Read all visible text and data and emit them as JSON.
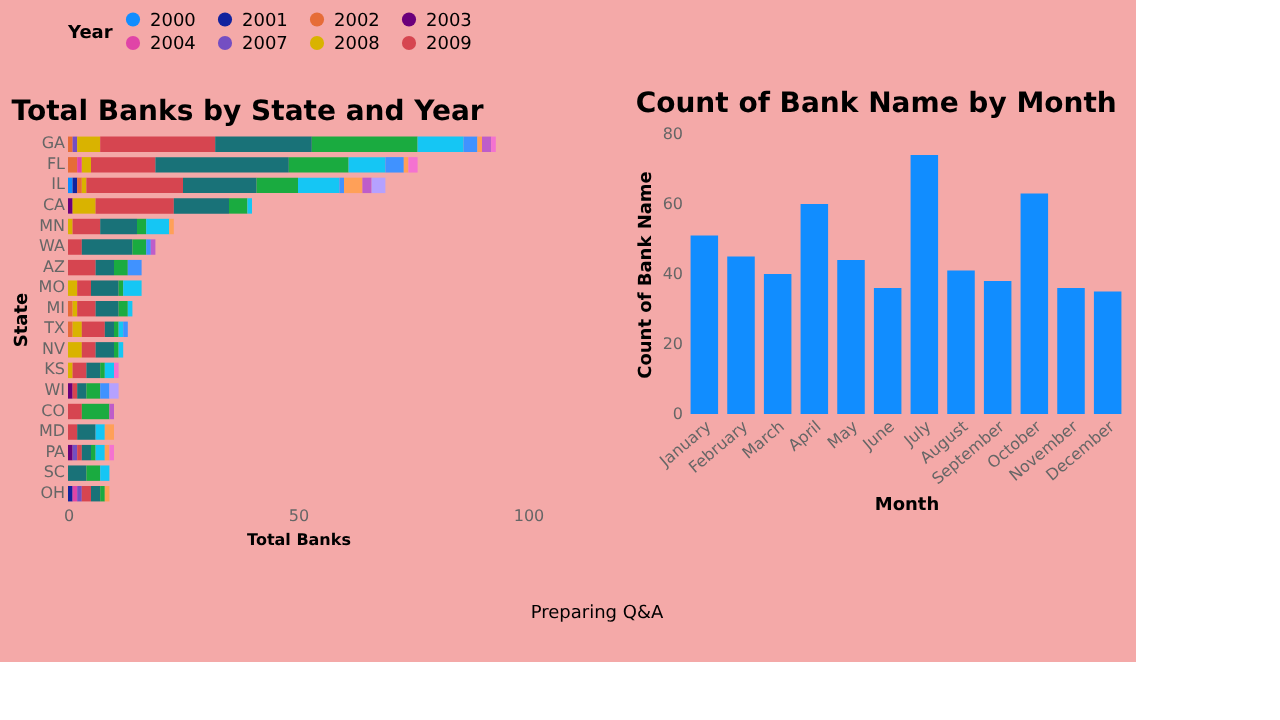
{
  "chart_data": [
    {
      "type": "bar",
      "title": "Total Banks by State and Year",
      "xlabel": "Total Banks",
      "ylabel": "State",
      "legend_title": "Year",
      "legend": "top",
      "orientation": "horizontal",
      "stacked": true,
      "xlim": [
        0,
        100
      ],
      "xticks": [
        0,
        50,
        100
      ],
      "categories": [
        "GA",
        "FL",
        "IL",
        "CA",
        "MN",
        "WA",
        "AZ",
        "MO",
        "MI",
        "TX",
        "NV",
        "KS",
        "WI",
        "CO",
        "MD",
        "PA",
        "SC",
        "OH"
      ],
      "series": [
        {
          "name": "2000",
          "color": "#118dff",
          "values": [
            0,
            0,
            1,
            0,
            0,
            0,
            0,
            0,
            0,
            0,
            0,
            0,
            0,
            0,
            0,
            0,
            0,
            0
          ]
        },
        {
          "name": "2001",
          "color": "#12239e",
          "values": [
            0,
            0,
            1,
            0,
            0,
            0,
            0,
            0,
            0,
            0,
            0,
            0,
            0,
            0,
            0,
            0,
            0,
            1
          ]
        },
        {
          "name": "2002",
          "color": "#e66c37",
          "values": [
            1,
            2,
            1,
            0,
            0,
            0,
            0,
            0,
            1,
            1,
            0,
            0,
            0,
            0,
            0,
            0,
            0,
            0
          ]
        },
        {
          "name": "2003",
          "color": "#6b007b",
          "values": [
            0,
            0,
            0,
            1,
            0,
            0,
            0,
            0,
            0,
            0,
            0,
            0,
            1,
            0,
            0,
            1,
            0,
            0
          ]
        },
        {
          "name": "2004",
          "color": "#e044a7",
          "values": [
            0,
            1,
            0,
            0,
            0,
            0,
            0,
            0,
            0,
            0,
            0,
            0,
            0,
            0,
            0,
            0,
            0,
            1
          ]
        },
        {
          "name": "2007",
          "color": "#744ec2",
          "values": [
            1,
            0,
            0,
            0,
            0,
            0,
            0,
            0,
            0,
            0,
            0,
            0,
            0,
            0,
            0,
            1,
            0,
            1
          ]
        },
        {
          "name": "2008",
          "color": "#d9b300",
          "values": [
            5,
            2,
            1,
            5,
            1,
            0,
            0,
            2,
            1,
            2,
            3,
            1,
            0,
            0,
            0,
            0,
            0,
            0
          ]
        },
        {
          "name": "2009",
          "color": "#d64550",
          "values": [
            25,
            14,
            21,
            17,
            6,
            3,
            6,
            3,
            4,
            5,
            3,
            3,
            1,
            3,
            2,
            1,
            0,
            2
          ]
        },
        {
          "color": "#197278",
          "values": [
            21,
            29,
            16,
            12,
            8,
            11,
            4,
            6,
            5,
            2,
            4,
            3,
            2,
            0,
            4,
            2,
            4,
            2
          ]
        },
        {
          "color": "#1aab40",
          "values": [
            23,
            13,
            9,
            4,
            2,
            3,
            3,
            1,
            2,
            1,
            1,
            1,
            3,
            6,
            0,
            1,
            3,
            1
          ]
        },
        {
          "color": "#15c6f4",
          "values": [
            10,
            8,
            9,
            1,
            5,
            0,
            0,
            4,
            1,
            1,
            1,
            2,
            0,
            0,
            2,
            2,
            2,
            0
          ]
        },
        {
          "color": "#4092ff",
          "values": [
            3,
            4,
            1,
            0,
            0,
            1,
            3,
            0,
            0,
            1,
            0,
            0,
            2,
            0,
            0,
            0,
            0,
            0
          ]
        },
        {
          "color": "#ffa058",
          "values": [
            1,
            1,
            4,
            0,
            1,
            0,
            0,
            0,
            0,
            0,
            0,
            0,
            0,
            0,
            2,
            1,
            0,
            1
          ]
        },
        {
          "color": "#be5dc9",
          "values": [
            2,
            0,
            2,
            0,
            0,
            1,
            0,
            0,
            0,
            0,
            0,
            0,
            0,
            1,
            0,
            0,
            0,
            0
          ]
        },
        {
          "color": "#f472d0",
          "values": [
            1,
            2,
            0,
            0,
            0,
            0,
            0,
            0,
            0,
            0,
            0,
            1,
            0,
            0,
            0,
            1,
            0,
            0
          ]
        },
        {
          "color": "#b5a1ff",
          "values": [
            0,
            0,
            3,
            0,
            0,
            0,
            0,
            0,
            0,
            0,
            0,
            0,
            2,
            0,
            0,
            0,
            0,
            0
          ]
        }
      ]
    },
    {
      "type": "bar",
      "title": "Count of Bank Name by Month",
      "xlabel": "Month",
      "ylabel": "Count of Bank Name",
      "ylim": [
        0,
        80
      ],
      "yticks": [
        0,
        20,
        40,
        60,
        80
      ],
      "color": "#118dff",
      "categories": [
        "January",
        "February",
        "March",
        "April",
        "May",
        "June",
        "July",
        "August",
        "September",
        "October",
        "November",
        "December"
      ],
      "values": [
        51,
        45,
        40,
        60,
        44,
        36,
        74,
        41,
        38,
        63,
        36,
        35
      ]
    },
    {
      "type": "other",
      "annotations": [
        "Preparing Q&A"
      ]
    }
  ]
}
